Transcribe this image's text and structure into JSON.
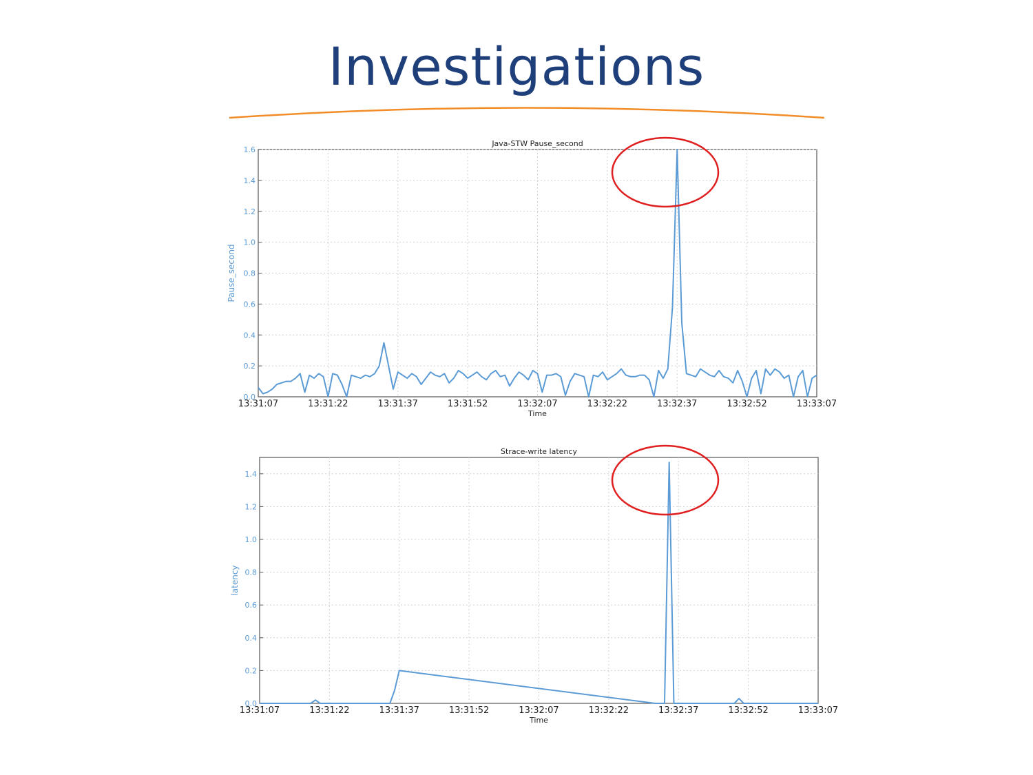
{
  "slide": {
    "title": "Investigations",
    "accent_color": "#f28c28",
    "title_color": "#1f3f7a"
  },
  "chart_data": [
    {
      "type": "line",
      "title": "Java-STW Pause_second",
      "xlabel": "Time",
      "ylabel": "Pause_second",
      "x_ticks": [
        "13:31:07",
        "13:31:22",
        "13:31:37",
        "13:31:52",
        "13:32:07",
        "13:32:22",
        "13:32:37",
        "13:32:52",
        "13:33:07"
      ],
      "y_ticks": [
        "0.0",
        "0.2",
        "0.4",
        "0.6",
        "0.8",
        "1.0",
        "1.2",
        "1.4",
        "1.6"
      ],
      "ylim": [
        0,
        1.6
      ],
      "grid": true,
      "line_color": "#5b9bd5",
      "highlight": "red ellipse around peak",
      "series": [
        {
          "x": [
            "13:31:07",
            "13:31:08",
            "13:31:09",
            "13:31:10",
            "13:31:11",
            "13:31:12",
            "13:31:13",
            "13:31:14",
            "13:31:15",
            "13:31:16",
            "13:31:17",
            "13:31:18",
            "13:31:19",
            "13:31:20",
            "13:31:21",
            "13:31:22",
            "13:31:23",
            "13:31:24",
            "13:31:25",
            "13:31:26",
            "13:31:27",
            "13:31:28",
            "13:31:29",
            "13:31:30",
            "13:31:31",
            "13:31:32",
            "13:31:33",
            "13:31:34",
            "13:31:35",
            "13:31:36",
            "13:31:37",
            "13:31:38",
            "13:31:39",
            "13:31:40",
            "13:31:41",
            "13:31:42",
            "13:31:43",
            "13:31:44",
            "13:31:45",
            "13:31:46",
            "13:31:47",
            "13:31:48",
            "13:31:49",
            "13:31:50",
            "13:31:51",
            "13:31:52",
            "13:31:53",
            "13:31:54",
            "13:31:55",
            "13:31:56",
            "13:31:57",
            "13:31:58",
            "13:31:59",
            "13:32:00",
            "13:32:01",
            "13:32:02",
            "13:32:03",
            "13:32:04",
            "13:32:05",
            "13:32:06",
            "13:32:07",
            "13:32:08",
            "13:32:09",
            "13:32:10",
            "13:32:11",
            "13:32:12",
            "13:32:13",
            "13:32:14",
            "13:32:15",
            "13:32:16",
            "13:32:17",
            "13:32:18",
            "13:32:19",
            "13:32:20",
            "13:32:21",
            "13:32:22",
            "13:32:23",
            "13:32:24",
            "13:32:25",
            "13:32:26",
            "13:32:27",
            "13:32:28",
            "13:32:29",
            "13:32:30",
            "13:32:31",
            "13:32:32",
            "13:32:33",
            "13:32:34",
            "13:32:35",
            "13:32:36",
            "13:32:37",
            "13:32:38",
            "13:32:39",
            "13:32:40",
            "13:32:41",
            "13:32:42",
            "13:32:43",
            "13:32:44",
            "13:32:45",
            "13:32:46",
            "13:32:47",
            "13:32:48",
            "13:32:49",
            "13:32:50",
            "13:32:51",
            "13:32:52",
            "13:32:53",
            "13:32:54",
            "13:32:55",
            "13:32:56",
            "13:32:57",
            "13:32:58",
            "13:32:59",
            "13:33:00",
            "13:33:01",
            "13:33:02",
            "13:33:03",
            "13:33:04",
            "13:33:05",
            "13:33:06",
            "13:33:07"
          ],
          "y": [
            0.06,
            0.02,
            0.03,
            0.05,
            0.08,
            0.09,
            0.1,
            0.1,
            0.12,
            0.15,
            0.03,
            0.14,
            0.12,
            0.15,
            0.13,
            0.0,
            0.15,
            0.14,
            0.08,
            0.0,
            0.14,
            0.13,
            0.12,
            0.14,
            0.13,
            0.15,
            0.2,
            0.35,
            0.2,
            0.05,
            0.16,
            0.14,
            0.12,
            0.15,
            0.13,
            0.08,
            0.12,
            0.16,
            0.14,
            0.13,
            0.15,
            0.09,
            0.12,
            0.17,
            0.15,
            0.12,
            0.14,
            0.16,
            0.13,
            0.11,
            0.15,
            0.17,
            0.13,
            0.14,
            0.07,
            0.12,
            0.16,
            0.14,
            0.11,
            0.17,
            0.15,
            0.03,
            0.14,
            0.14,
            0.15,
            0.13,
            0.01,
            0.1,
            0.15,
            0.14,
            0.13,
            0.0,
            0.14,
            0.13,
            0.16,
            0.11,
            0.13,
            0.15,
            0.18,
            0.14,
            0.13,
            0.13,
            0.14,
            0.14,
            0.11,
            0.0,
            0.17,
            0.12,
            0.18,
            0.58,
            1.6,
            0.48,
            0.15,
            0.14,
            0.13,
            0.18,
            0.16,
            0.14,
            0.13,
            0.17,
            0.13,
            0.12,
            0.09,
            0.17,
            0.1,
            0.0,
            0.12,
            0.17,
            0.02,
            0.18,
            0.14,
            0.18,
            0.16,
            0.12,
            0.14,
            0.0,
            0.13,
            0.17,
            0.0,
            0.12,
            0.14
          ]
        }
      ]
    },
    {
      "type": "line",
      "title": "Strace-write latency",
      "xlabel": "Time",
      "ylabel": "latency",
      "x_ticks": [
        "13:31:07",
        "13:31:22",
        "13:31:37",
        "13:31:52",
        "13:32:07",
        "13:32:22",
        "13:32:37",
        "13:32:52",
        "13:33:07"
      ],
      "y_ticks": [
        "0.0",
        "0.2",
        "0.4",
        "0.6",
        "0.8",
        "1.0",
        "1.2",
        "1.4"
      ],
      "ylim": [
        0,
        1.5
      ],
      "grid": true,
      "line_color": "#5b9bd5",
      "highlight": "red ellipse around peak",
      "series": [
        {
          "x": [
            "13:31:07",
            "13:31:18",
            "13:31:19",
            "13:31:20",
            "13:31:35",
            "13:31:36",
            "13:31:37",
            "13:32:32",
            "13:32:33",
            "13:32:34",
            "13:32:35",
            "13:32:36",
            "13:32:49",
            "13:32:50",
            "13:32:51",
            "13:33:07"
          ],
          "y": [
            0.0,
            0.0,
            0.02,
            0.0,
            0.0,
            0.08,
            0.2,
            0.0,
            0.0,
            0.0,
            1.47,
            0.0,
            0.0,
            0.03,
            0.0,
            0.0
          ]
        }
      ]
    }
  ]
}
